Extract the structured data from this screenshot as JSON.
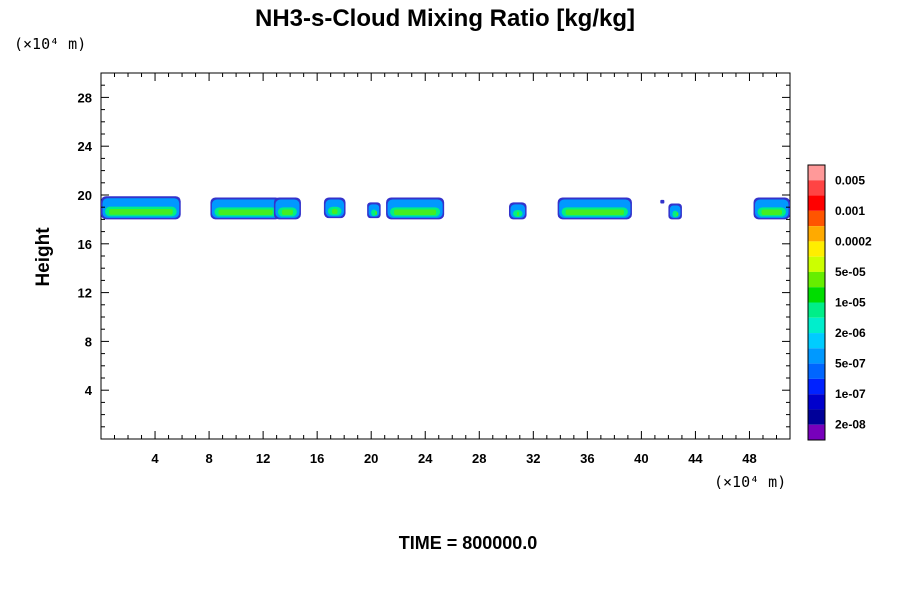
{
  "chart_data": {
    "type": "heatmap",
    "title": "NH3-s-Cloud Mixing Ratio [kg/kg]",
    "ylabel": "Height",
    "xlabel": "",
    "x_unit_label": "(×10⁴ m)",
    "y_unit_label": "(×10⁴ m)",
    "time_label": "TIME = 800000.0",
    "xlim": [
      0,
      51
    ],
    "ylim": [
      0,
      30
    ],
    "x_ticks": [
      4,
      8,
      12,
      16,
      20,
      24,
      28,
      32,
      36,
      40,
      44,
      48
    ],
    "y_ticks": [
      4,
      8,
      12,
      16,
      20,
      24,
      28
    ],
    "colorbar": {
      "labels": [
        "0.005",
        "0.001",
        "0.0002",
        "5e-05",
        "1e-05",
        "2e-06",
        "5e-07",
        "1e-07",
        "2e-08"
      ],
      "colors": [
        "#ff9999",
        "#ff4444",
        "#ff0000",
        "#ff5500",
        "#ffaa00",
        "#ffee00",
        "#ccff00",
        "#66ee00",
        "#00dd00",
        "#00ee88",
        "#00eecc",
        "#00ccff",
        "#0099ff",
        "#0066ff",
        "#0022ff",
        "#0000cc",
        "#000099",
        "#7700bb"
      ]
    },
    "cloud_patches": [
      {
        "x0": 0.0,
        "x1": 5.9,
        "base": 18.0,
        "top": 19.9
      },
      {
        "x0": 8.1,
        "x1": 13.3,
        "base": 18.0,
        "top": 19.8
      },
      {
        "x0": 12.8,
        "x1": 14.8,
        "base": 18.0,
        "top": 19.8
      },
      {
        "x0": 16.5,
        "x1": 18.1,
        "base": 18.1,
        "top": 19.8
      },
      {
        "x0": 19.7,
        "x1": 20.7,
        "base": 18.1,
        "top": 19.4
      },
      {
        "x0": 21.1,
        "x1": 25.4,
        "base": 18.0,
        "top": 19.8
      },
      {
        "x0": 30.2,
        "x1": 31.5,
        "base": 18.0,
        "top": 19.4
      },
      {
        "x0": 33.8,
        "x1": 39.3,
        "base": 18.0,
        "top": 19.8
      },
      {
        "x0": 41.4,
        "x1": 41.7,
        "base": 19.3,
        "top": 19.6
      },
      {
        "x0": 42.0,
        "x1": 43.0,
        "base": 18.0,
        "top": 19.3
      },
      {
        "x0": 48.3,
        "x1": 51.0,
        "base": 18.0,
        "top": 19.8
      }
    ],
    "grid": false
  }
}
